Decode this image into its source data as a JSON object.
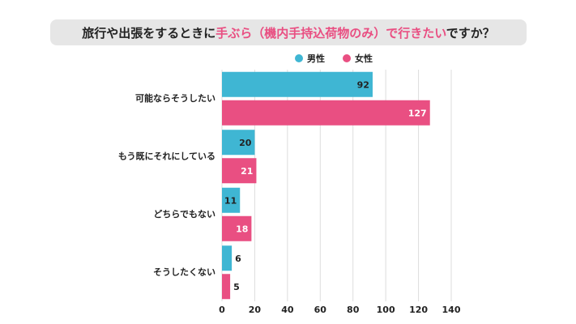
{
  "chart_data": {
    "type": "bar",
    "orientation": "horizontal",
    "title": [
      {
        "text": "旅行や出張をするときに",
        "color": "#222222"
      },
      {
        "text": "手ぶら（機内手持込荷物のみ）で行きたい",
        "color": "#e94f82"
      },
      {
        "text": "ですか？",
        "color": "#222222"
      }
    ],
    "categories": [
      "可能ならそうしたい",
      "もう既にそれにしている",
      "どちらでもない",
      "そうしたくない"
    ],
    "series": [
      {
        "name": "男性",
        "color": "#3fb6d3",
        "values": [
          92,
          20,
          11,
          6
        ]
      },
      {
        "name": "女性",
        "color": "#e94f82",
        "values": [
          127,
          21,
          18,
          5
        ]
      }
    ],
    "xlim": [
      0,
      140
    ],
    "xticks": [
      0,
      20,
      40,
      60,
      80,
      100,
      120,
      140
    ],
    "grid": true,
    "legend": "top"
  }
}
